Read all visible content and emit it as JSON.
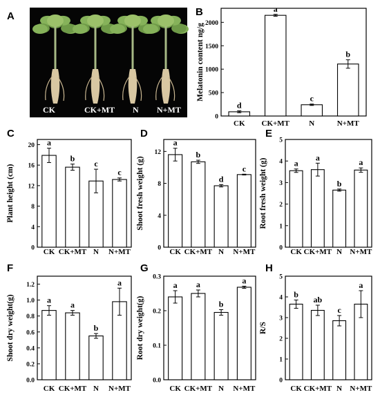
{
  "panel_a": {
    "letter": "A",
    "labels": [
      "CK",
      "CK+MT",
      "N",
      "N+MT"
    ]
  },
  "chart_data": [
    {
      "letter": "B",
      "type": "bar",
      "categories": [
        "CK",
        "CK+MT",
        "N",
        "N+MT"
      ],
      "values": [
        90,
        2150,
        240,
        1110
      ],
      "errors": [
        20,
        20,
        15,
        90
      ],
      "significance": [
        "d",
        "a",
        "c",
        "b"
      ],
      "ylabel": "Melatonin content ng/g",
      "ylim": [
        0,
        2300
      ],
      "yticks": [
        0,
        500,
        1000,
        1500,
        2000
      ],
      "ytick_labels": [
        "0",
        "500",
        "1000",
        "1500",
        "2000"
      ]
    },
    {
      "letter": "C",
      "type": "bar",
      "categories": [
        "CK",
        "CK+MT",
        "N",
        "N+MT"
      ],
      "values": [
        17.9,
        15.6,
        12.9,
        13.2
      ],
      "errors": [
        1.4,
        0.6,
        2.3,
        0.3
      ],
      "significance": [
        "a",
        "b",
        "c",
        "c"
      ],
      "ylabel": "Plant height (cm)",
      "ylim": [
        0,
        21
      ],
      "yticks": [
        0,
        4,
        8,
        12,
        16,
        20
      ],
      "ytick_labels": [
        "0",
        "4",
        "8",
        "12",
        "16",
        "20"
      ]
    },
    {
      "letter": "D",
      "type": "bar",
      "categories": [
        "CK",
        "CK+MT",
        "N",
        "N+MT"
      ],
      "values": [
        11.6,
        10.7,
        7.7,
        9.1
      ],
      "errors": [
        0.8,
        0.2,
        0.15,
        0.05
      ],
      "significance": [
        "a",
        "b",
        "d",
        "c"
      ],
      "ylabel": "Shoot fresh weight (g)",
      "ylim": [
        0,
        13.5
      ],
      "yticks": [
        0,
        4,
        8,
        12
      ],
      "ytick_labels": [
        "0",
        "4",
        "8",
        "12"
      ]
    },
    {
      "letter": "E",
      "type": "bar",
      "categories": [
        "CK",
        "CK+MT",
        "N",
        "N+MT"
      ],
      "values": [
        3.55,
        3.6,
        2.65,
        3.58
      ],
      "errors": [
        0.08,
        0.3,
        0.05,
        0.1
      ],
      "significance": [
        "a",
        "a",
        "b",
        "a"
      ],
      "ylabel": "Root fresh weight (g)",
      "ylim": [
        0,
        5
      ],
      "yticks": [
        0,
        1,
        2,
        3,
        4,
        5
      ],
      "ytick_labels": [
        "0",
        "1",
        "2",
        "3",
        "4",
        "5"
      ]
    },
    {
      "letter": "F",
      "type": "bar",
      "categories": [
        "CK",
        "CK+MT",
        "N",
        "N+MT"
      ],
      "values": [
        0.87,
        0.84,
        0.55,
        0.98
      ],
      "errors": [
        0.06,
        0.03,
        0.03,
        0.17
      ],
      "significance": [
        "a",
        "a",
        "b",
        "a"
      ],
      "ylabel": "Shoot dry weight(g)",
      "ylim": [
        0,
        1.3
      ],
      "yticks": [
        0,
        0.2,
        0.4,
        0.6,
        0.8,
        1.0,
        1.2
      ],
      "ytick_labels": [
        "0.0",
        "0.2",
        "0.4",
        "0.6",
        "0.8",
        "1.0",
        "1.2"
      ]
    },
    {
      "letter": "G",
      "type": "bar",
      "categories": [
        "CK",
        "CK+MT",
        "N",
        "N+MT"
      ],
      "values": [
        0.24,
        0.25,
        0.195,
        0.268
      ],
      "errors": [
        0.018,
        0.01,
        0.008,
        0.003
      ],
      "significance": [
        "a",
        "a",
        "b",
        "a"
      ],
      "ylabel": "Root dry weight(g)",
      "ylim": [
        0,
        0.3
      ],
      "yticks": [
        0,
        0.1,
        0.2,
        0.3
      ],
      "ytick_labels": [
        "0.0",
        "0.1",
        "0.2",
        "0.3"
      ]
    },
    {
      "letter": "H",
      "type": "bar",
      "categories": [
        "CK",
        "CK+MT",
        "N",
        "N+MT"
      ],
      "values": [
        3.65,
        3.35,
        2.85,
        3.65
      ],
      "errors": [
        0.2,
        0.25,
        0.25,
        0.65
      ],
      "significance": [
        "b",
        "ab",
        "c",
        "a"
      ],
      "ylabel": "R/S",
      "ylim": [
        0,
        5
      ],
      "yticks": [
        0,
        1,
        2,
        3,
        4,
        5
      ],
      "ytick_labels": [
        "0",
        "1",
        "2",
        "3",
        "4",
        "5"
      ]
    }
  ]
}
